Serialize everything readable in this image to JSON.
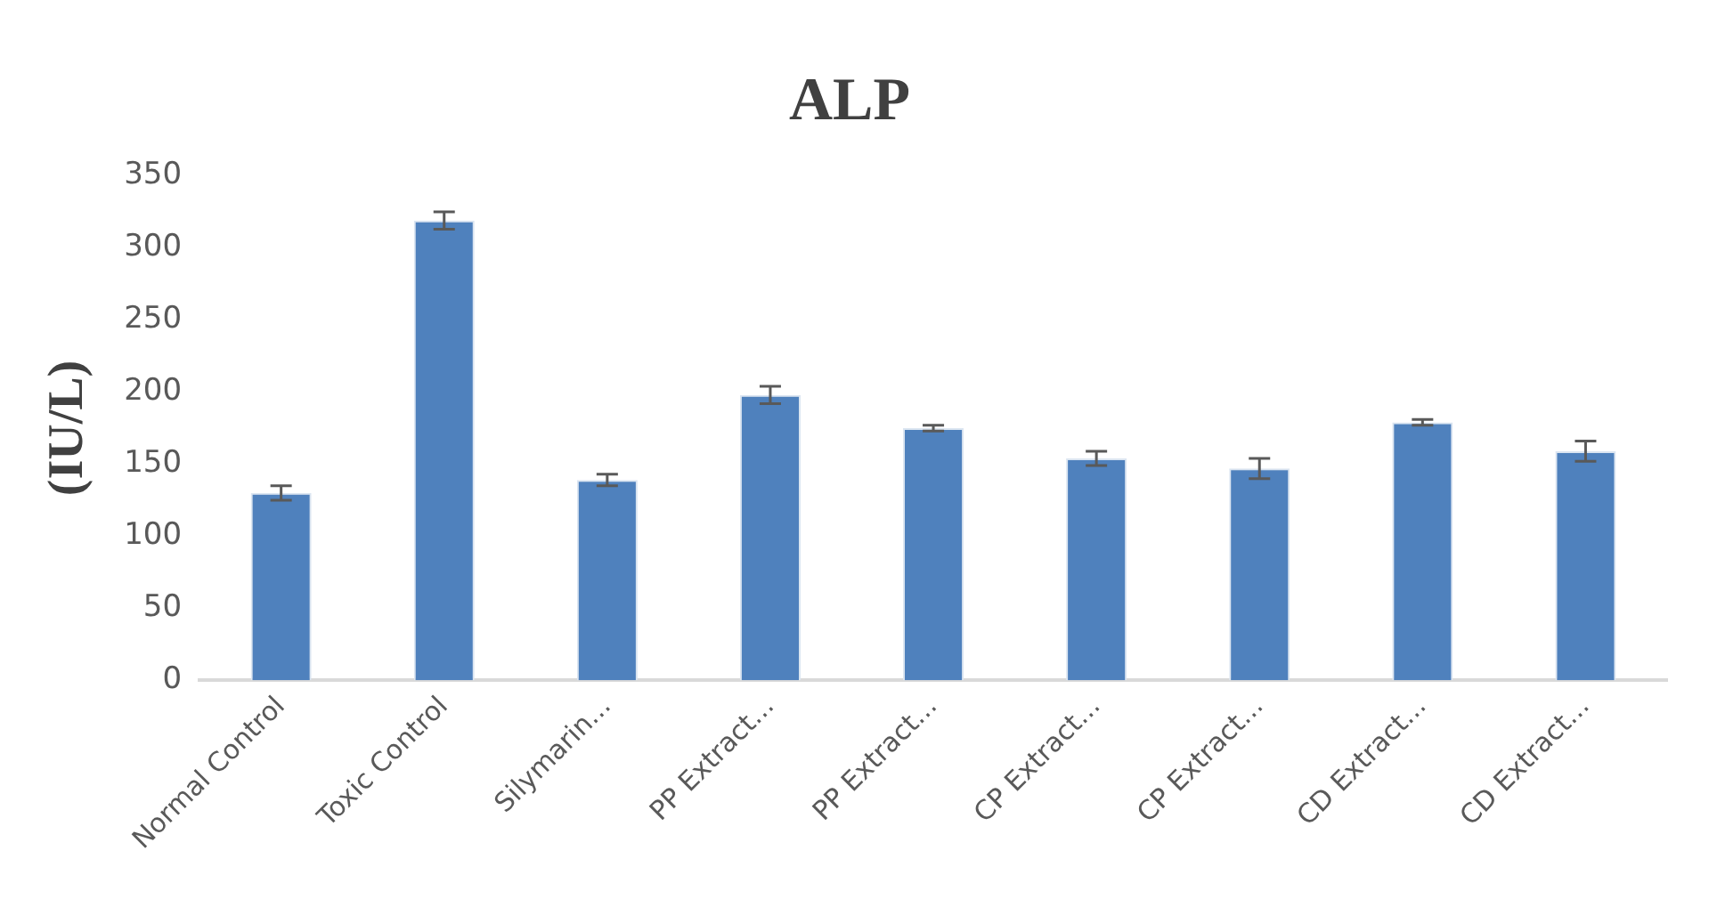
{
  "chart_data": {
    "type": "bar",
    "title": "ALP",
    "ylabel": "(IU/L)",
    "categories": [
      "Normal Control",
      "Toxic Control",
      "Silymarin...",
      "PP Extract...",
      "PP Extract...",
      "CP Extract...",
      "CP Extract...",
      "CD Extract...",
      "CD Extract..."
    ],
    "values": [
      130,
      319,
      139,
      198,
      175,
      154,
      147,
      179,
      159
    ],
    "errors": [
      5,
      6,
      4,
      6,
      2,
      5,
      7,
      2,
      7
    ],
    "color": "#4f81bd",
    "ylim": [
      0,
      350
    ],
    "yticks": [
      0,
      50,
      100,
      150,
      200,
      250,
      300,
      350
    ],
    "grid": false,
    "legend": false
  }
}
